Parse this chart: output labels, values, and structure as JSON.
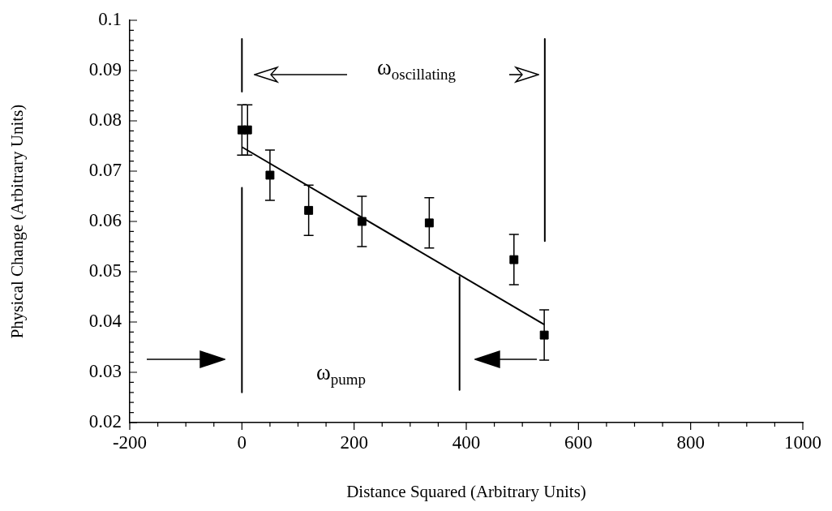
{
  "chart_data": {
    "type": "scatter",
    "xlabel": "Distance Squared (Arbitrary Units)",
    "ylabel": "Physical Change (Arbitrary Units)",
    "annotations": [
      "ω$_{oscillating}$",
      "ω$_{pump}$"
    ],
    "series": [
      {
        "type": "scatter",
        "color": "#000000",
        "marker": "square",
        "x": [
          0,
          10,
          50,
          119,
          214,
          334,
          485,
          539
        ],
        "values": [
          0.0782,
          0.0782,
          0.0692,
          0.0622,
          0.06,
          0.0597,
          0.0524,
          0.0374
        ],
        "errors": [
          0.005,
          0.005,
          0.005,
          0.005,
          0.005,
          0.005,
          0.005,
          0.005
        ]
      },
      {
        "type": "line",
        "color": "#000000",
        "marker": "none",
        "x": [
          0,
          539
        ],
        "values": [
          0.0748,
          0.0395
        ]
      },
      {
        "type": "line",
        "color": "#000000",
        "marker": "none",
        "x": [
          0,
          0
        ],
        "values": [
          0.0963,
          0.0858
        ]
      },
      {
        "type": "line",
        "color": "#000000",
        "marker": "none",
        "x": [
          0,
          0
        ],
        "values": [
          0.0667,
          0.026
        ]
      },
      {
        "type": "line",
        "color": "#000000",
        "marker": "none",
        "x": [
          388,
          388
        ],
        "values": [
          0.049,
          0.0265
        ]
      },
      {
        "type": "line",
        "color": "#000000",
        "marker": "none",
        "x": [
          540,
          540
        ],
        "values": [
          0.0963,
          0.0561
        ]
      }
    ],
    "xlim": [
      -200,
      1000
    ],
    "xticks": [
      -200,
      {
        "value": -150,
        "label": null
      },
      {
        "value": -100,
        "label": null
      },
      {
        "value": -50,
        "label": null
      },
      0,
      {
        "value": 50,
        "label": null
      },
      {
        "value": 100,
        "label": null
      },
      {
        "value": 150,
        "label": null
      },
      200,
      {
        "value": 250,
        "label": null
      },
      {
        "value": 300,
        "label": null
      },
      {
        "value": 350,
        "label": null
      },
      400,
      {
        "value": 450,
        "label": null
      },
      {
        "value": 500,
        "label": null
      },
      {
        "value": 550,
        "label": null
      },
      600,
      {
        "value": 650,
        "label": null
      },
      {
        "value": 700,
        "label": null
      },
      {
        "value": 750,
        "label": null
      },
      800,
      {
        "value": 850,
        "label": null
      },
      {
        "value": 900,
        "label": null
      },
      {
        "value": 950,
        "label": null
      },
      1000
    ],
    "ylim": [
      0.02,
      0.1
    ],
    "yticks": [
      0.02,
      {
        "value": 0.022,
        "label": null
      },
      {
        "value": 0.024,
        "label": null
      },
      {
        "value": 0.026,
        "label": null
      },
      {
        "value": 0.028,
        "label": null
      },
      0.03,
      {
        "value": 0.032,
        "label": null
      },
      {
        "value": 0.034,
        "label": null
      },
      {
        "value": 0.036,
        "label": null
      },
      {
        "value": 0.038,
        "label": null
      },
      0.04,
      {
        "value": 0.042,
        "label": null
      },
      {
        "value": 0.044,
        "label": null
      },
      {
        "value": 0.046,
        "label": null
      },
      {
        "value": 0.048,
        "label": null
      },
      0.05,
      {
        "value": 0.052,
        "label": null
      },
      {
        "value": 0.054,
        "label": null
      },
      {
        "value": 0.056,
        "label": null
      },
      {
        "value": 0.058,
        "label": null
      },
      0.06,
      {
        "value": 0.062,
        "label": null
      },
      {
        "value": 0.064,
        "label": null
      },
      {
        "value": 0.066,
        "label": null
      },
      {
        "value": 0.068,
        "label": null
      },
      0.07,
      {
        "value": 0.072,
        "label": null
      },
      {
        "value": 0.074,
        "label": null
      },
      {
        "value": 0.076,
        "label": null
      },
      {
        "value": 0.078,
        "label": null
      },
      0.08,
      {
        "value": 0.082,
        "label": null
      },
      {
        "value": 0.084,
        "label": null
      },
      {
        "value": 0.086,
        "label": null
      },
      {
        "value": 0.088,
        "label": null
      },
      0.09,
      {
        "value": 0.092,
        "label": null
      },
      {
        "value": 0.094,
        "label": null
      },
      {
        "value": 0.096,
        "label": null
      },
      {
        "value": 0.098,
        "label": null
      },
      0.1
    ],
    "grid": false,
    "legend": false
  }
}
